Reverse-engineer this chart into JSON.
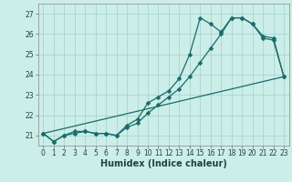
{
  "xlabel": "Humidex (Indice chaleur)",
  "ylabel": "",
  "background_color": "#cceee8",
  "grid_color": "#aad4ce",
  "line_color": "#1a6b6b",
  "xlim": [
    -0.5,
    23.5
  ],
  "ylim": [
    20.5,
    27.5
  ],
  "xticks": [
    0,
    1,
    2,
    3,
    4,
    5,
    6,
    7,
    8,
    9,
    10,
    11,
    12,
    13,
    14,
    15,
    16,
    17,
    18,
    19,
    20,
    21,
    22,
    23
  ],
  "yticks": [
    21,
    22,
    23,
    24,
    25,
    26,
    27
  ],
  "line1_x": [
    0,
    1,
    2,
    3,
    4,
    5,
    6,
    7,
    8,
    9,
    10,
    11,
    12,
    13,
    14,
    15,
    16,
    17,
    18,
    19,
    20,
    21,
    22,
    23
  ],
  "line1_y": [
    21.1,
    20.7,
    21.0,
    21.2,
    21.2,
    21.1,
    21.1,
    21.0,
    21.5,
    21.8,
    22.6,
    22.9,
    23.2,
    23.8,
    25.0,
    26.8,
    26.5,
    26.1,
    26.8,
    26.8,
    26.5,
    25.9,
    25.8,
    23.9
  ],
  "line2_x": [
    0,
    1,
    2,
    3,
    4,
    5,
    6,
    7,
    8,
    9,
    10,
    11,
    12,
    13,
    14,
    15,
    16,
    17,
    18,
    19,
    20,
    21,
    22,
    23
  ],
  "line2_y": [
    21.1,
    20.7,
    21.0,
    21.1,
    21.2,
    21.1,
    21.1,
    21.0,
    21.4,
    21.6,
    22.1,
    22.5,
    22.9,
    23.3,
    23.9,
    24.6,
    25.3,
    26.0,
    26.8,
    26.8,
    26.5,
    25.8,
    25.7,
    23.9
  ],
  "line3_x": [
    0,
    23
  ],
  "line3_y": [
    21.1,
    23.9
  ],
  "tick_fontsize": 5.5,
  "xlabel_fontsize": 7,
  "marker_size": 2.5,
  "line_width": 0.9
}
